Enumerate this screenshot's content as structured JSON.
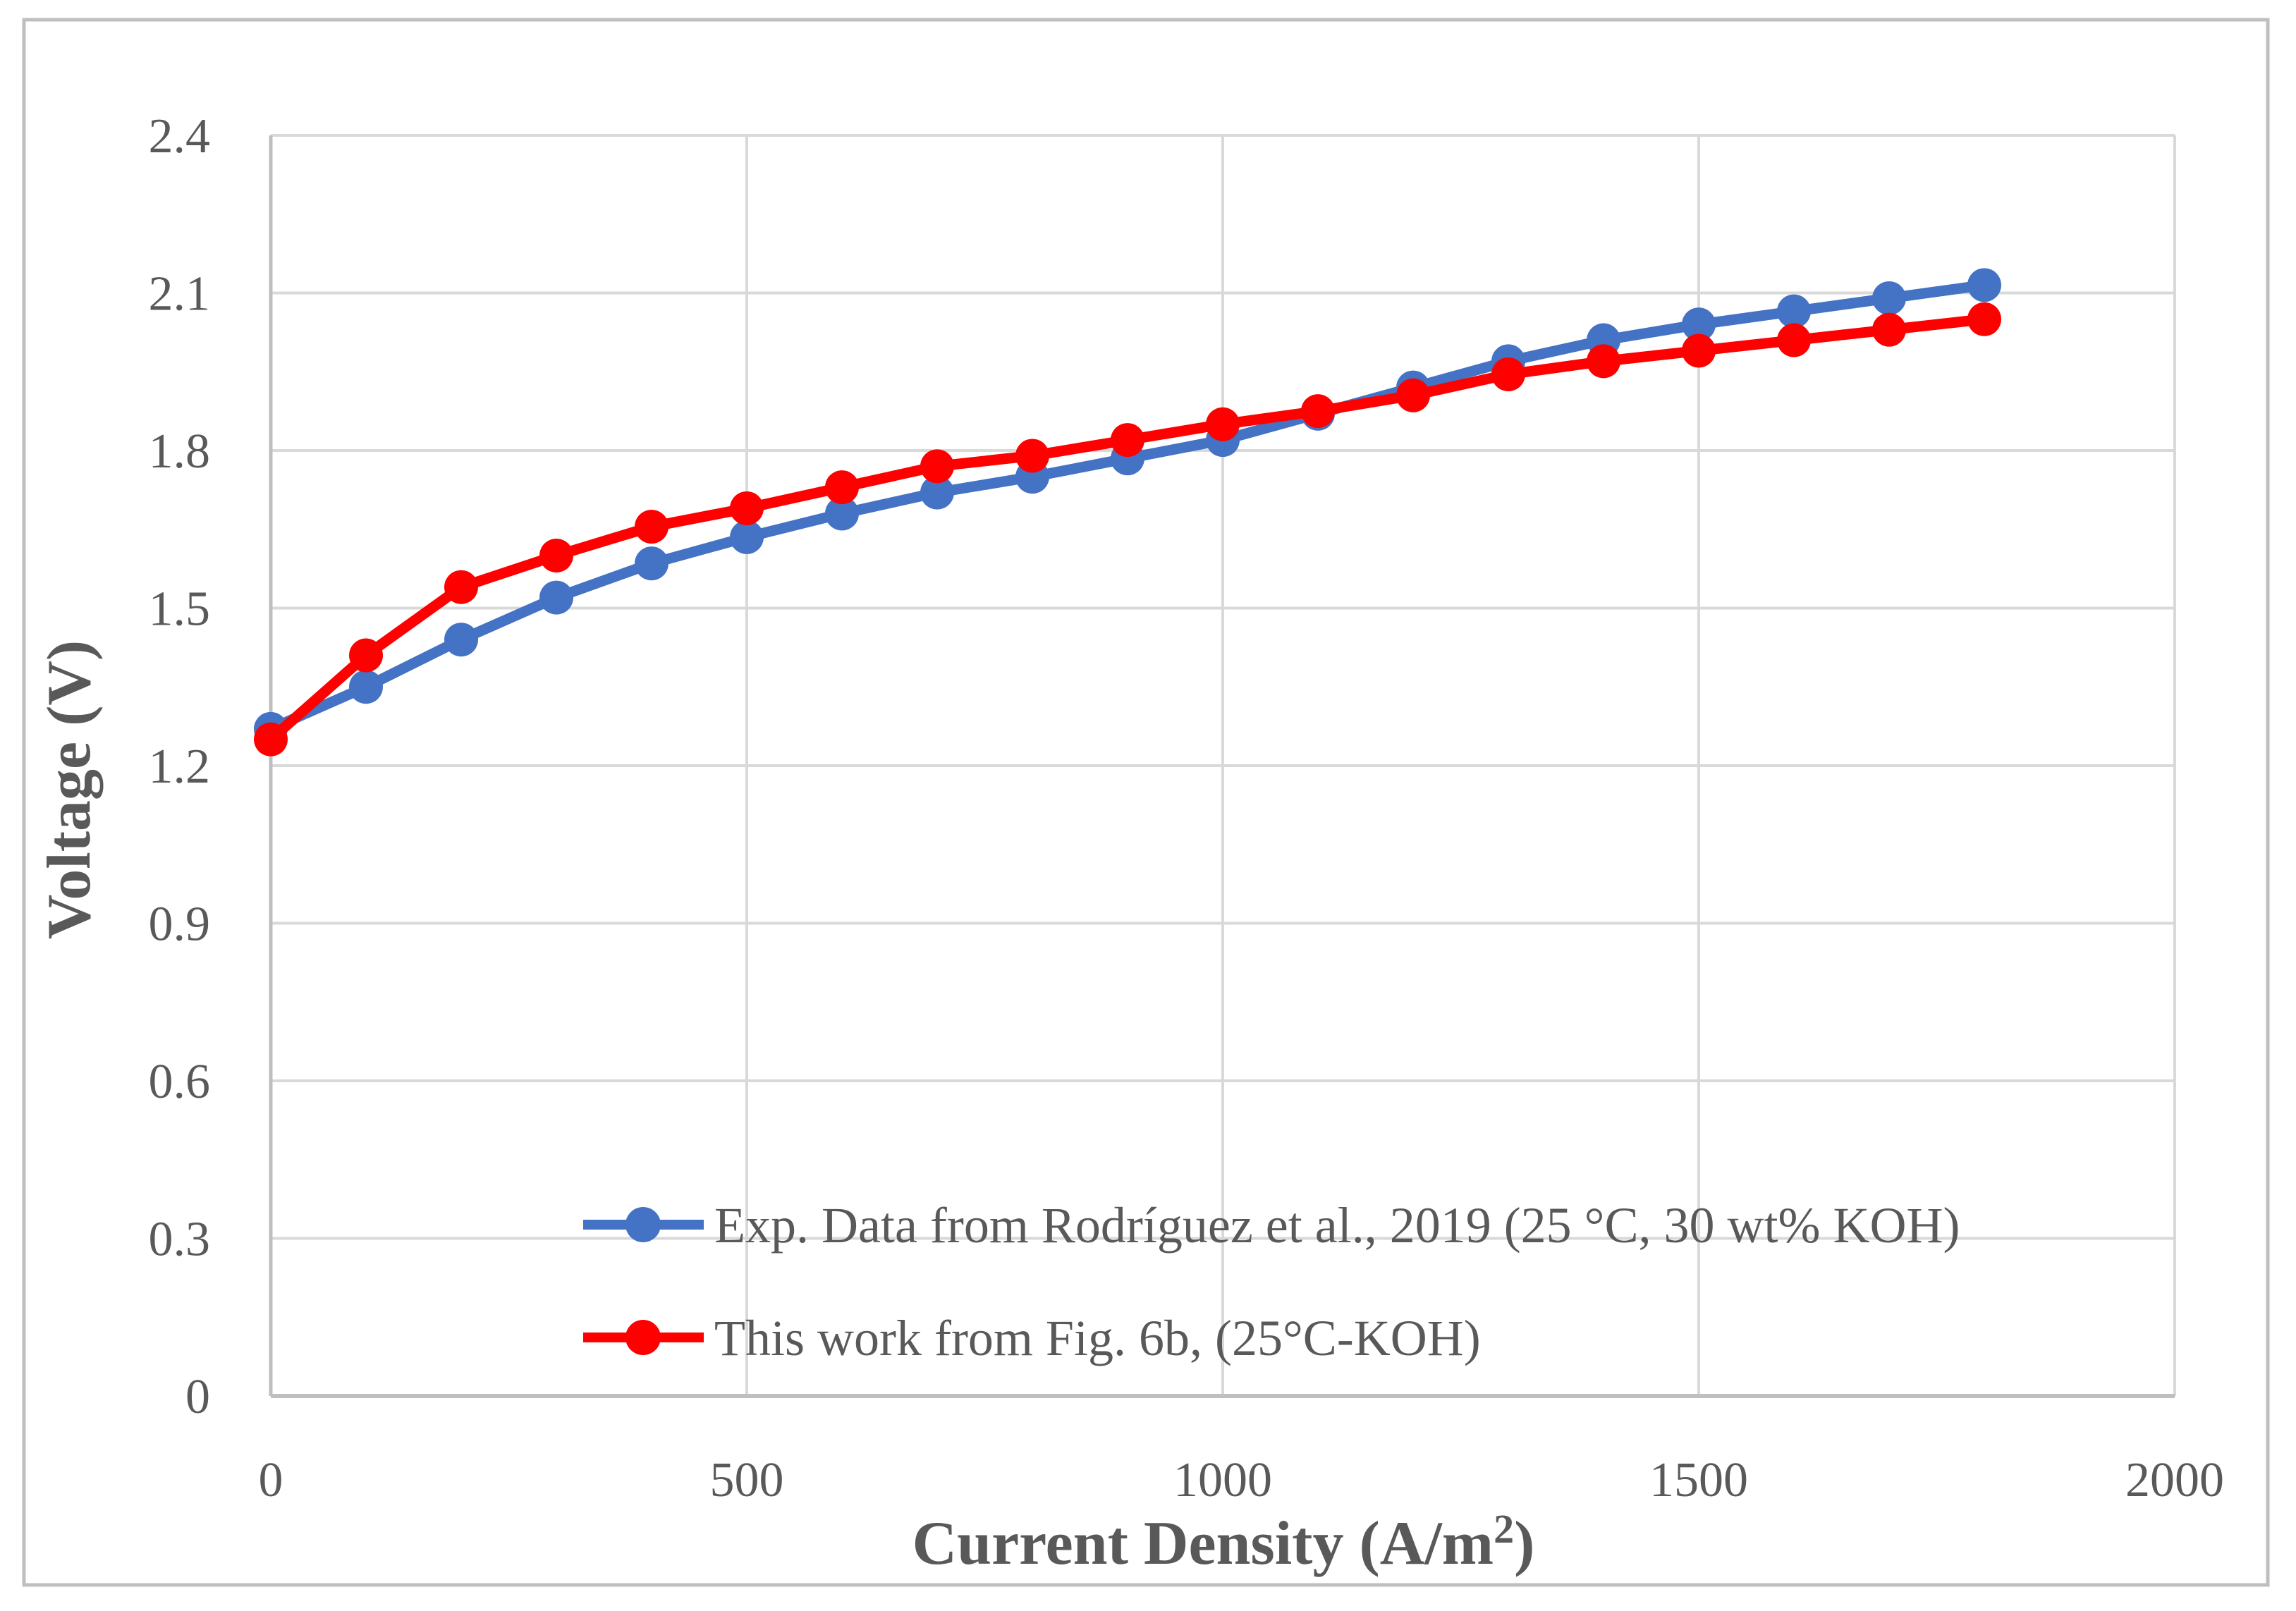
{
  "figure": {
    "background": "#FFFFFF",
    "border_color": "#BFBFBF"
  },
  "colors": {
    "gridline": "#D9D9D9",
    "axis_line": "#BFBFBF",
    "text": "#595959",
    "series_blue": "#4472C4",
    "series_red": "#FF0000"
  },
  "axes": {
    "x_title_main": "Current Density (A/m",
    "x_title_sup": "2",
    "x_title_end": ")",
    "y_title": "Voltage (V)"
  },
  "chart_data": {
    "type": "line",
    "title": "",
    "xlabel": "Current Density (A/m²)",
    "ylabel": "Voltage (V)",
    "xlim": [
      0,
      2000
    ],
    "ylim": [
      0,
      2.4
    ],
    "x_tick_values": [
      0,
      500,
      1000,
      1500,
      2000
    ],
    "x_tick_labels": [
      "0",
      "500",
      "1000",
      "1500",
      "2000"
    ],
    "y_tick_values": [
      0,
      0.3,
      0.6,
      0.9,
      1.2,
      1.5,
      1.8,
      2.1,
      2.4
    ],
    "y_tick_labels": [
      "0",
      "0.3",
      "0.6",
      "0.9",
      "1.2",
      "1.5",
      "1.8",
      "2.1",
      "2.4"
    ],
    "grid": true,
    "legend_position": "inside bottom-left",
    "x": [
      0,
      100,
      200,
      300,
      400,
      500,
      600,
      700,
      800,
      900,
      1000,
      1100,
      1200,
      1300,
      1400,
      1500,
      1600,
      1700,
      1800
    ],
    "series": [
      {
        "name": "Exp. Data from Rodríguez et al., 2019 (25 °C, 30 wt% KOH)",
        "color": "#4472C4",
        "marker": "circle",
        "values": [
          1.27,
          1.35,
          1.44,
          1.52,
          1.585,
          1.635,
          1.68,
          1.72,
          1.75,
          1.785,
          1.82,
          1.87,
          1.92,
          1.97,
          2.01,
          2.04,
          2.065,
          2.09,
          2.115
        ]
      },
      {
        "name": "This work from Fig. 6b, (25°C-KOH)",
        "color": "#FF0000",
        "marker": "circle",
        "values": [
          1.25,
          1.41,
          1.54,
          1.6,
          1.655,
          1.69,
          1.73,
          1.77,
          1.79,
          1.82,
          1.85,
          1.875,
          1.905,
          1.945,
          1.97,
          1.99,
          2.01,
          2.03,
          2.05
        ]
      }
    ]
  }
}
